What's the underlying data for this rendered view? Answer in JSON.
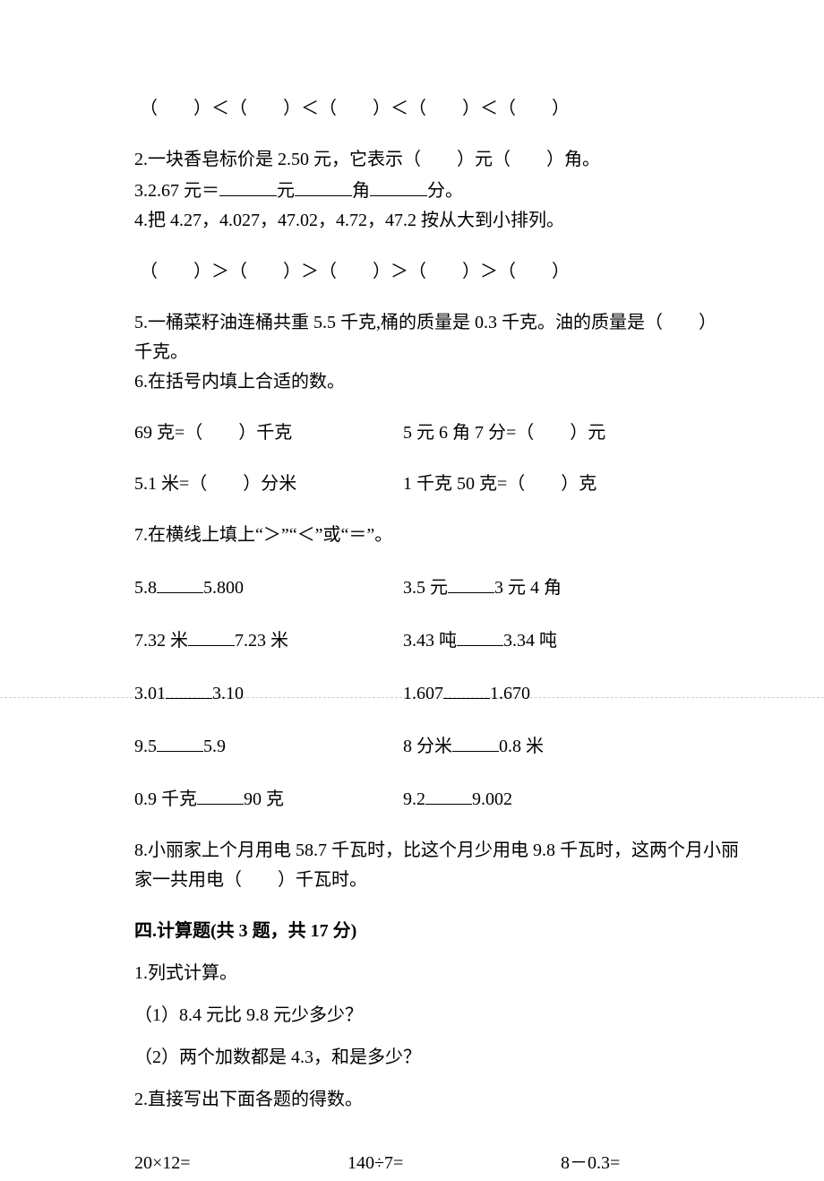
{
  "q1_ordering": "（　　）＜（　　）＜（　　）＜（　　）＜（　　）",
  "q2": "2.一块香皂标价是 2.50 元，它表示（　　）元（　　）角。",
  "q3_pre": "3.2.67 元＝",
  "q3_u1": "元",
  "q3_u2": "角",
  "q3_u3": "分。",
  "q4": "4.把 4.27，4.027，47.02，4.72，47.2 按从大到小排列。",
  "q4_ordering": "（　　）＞（　　）＞（　　）＞（　　）＞（　　）",
  "q5a": "5.一桶菜籽油连桶共重 5.5 千克,桶的质量是 0.3 千克。油的质量是（　　）",
  "q5b": "千克。",
  "q6": "6.在括号内填上合适的数。",
  "q6_r1_l": "69 克=（　　）千克",
  "q6_r1_r": "5 元 6 角 7 分=（　　）元",
  "q6_r2_l": "5.1 米=（　　）分米",
  "q6_r2_r": "1 千克 50 克=（　　）克",
  "q7": "7.在横线上填上“＞”“＜”或“＝”。",
  "q7_r1_l1": "5.8",
  "q7_r1_l2": "5.800",
  "q7_r1_r1": "3.5 元",
  "q7_r1_r2": "3 元 4 角",
  "q7_r2_l1": "7.32 米",
  "q7_r2_l2": "7.23 米",
  "q7_r2_r1": "3.43 吨",
  "q7_r2_r2": "3.34 吨",
  "q7_r3_l1": "3.01",
  "q7_r3_l2": "3.10",
  "q7_r3_r1": "1.607",
  "q7_r3_r2": "1.670",
  "q7_r4_l1": "9.5",
  "q7_r4_l2": "5.9",
  "q7_r4_r1": " 8 分米",
  "q7_r4_r2": "0.8 米",
  "q7_r5_l1": "0.9 千克",
  "q7_r5_l2": "90 克",
  "q7_r5_r1": "9.2",
  "q7_r5_r2": "9.002",
  "q8a": "8.小丽家上个月用电 58.7 千瓦时，比这个月少用电 9.8 千瓦时，这两个月小丽",
  "q8b": "家一共用电（　　）千瓦时。",
  "sec4": "四.计算题(共 3 题，共 17 分)",
  "s4_q1": "1.列式计算。",
  "s4_q1_1": "（1）8.4 元比 9.8 元少多少？",
  "s4_q1_2": "（2）两个加数都是 4.3，和是多少？",
  "s4_q2": "2.直接写出下面各题的得数。",
  "s4_q2_a": "20×12=",
  "s4_q2_b": "140÷7=",
  "s4_q2_c": "8－0.3="
}
